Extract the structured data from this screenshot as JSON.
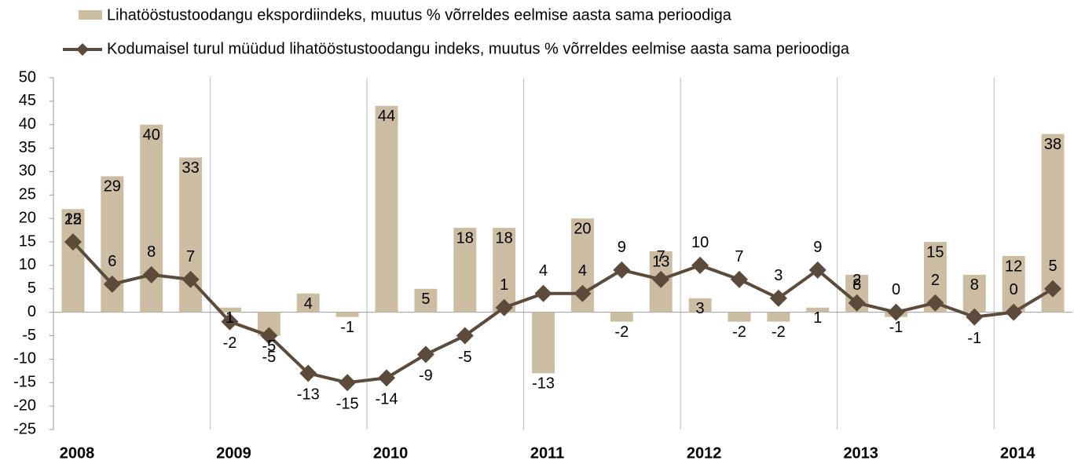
{
  "chart_data": {
    "type": "bar-line",
    "categories": [
      "2008",
      null,
      null,
      null,
      "2009",
      null,
      null,
      null,
      "2010",
      null,
      null,
      null,
      "2011",
      null,
      null,
      null,
      "2012",
      null,
      null,
      null,
      "2013",
      null,
      null,
      null,
      "2014",
      null
    ],
    "series": [
      {
        "name": "Lihatööstustoodangu ekspordiindeks, muutus % võrreldes eelmise aasta sama perioodiga",
        "type": "bar",
        "color": "#cbbca2",
        "values": [
          22,
          29,
          40,
          33,
          1,
          -5,
          4,
          -1,
          44,
          5,
          18,
          18,
          -13,
          20,
          -2,
          13,
          3,
          -2,
          -2,
          1,
          8,
          -1,
          15,
          8,
          12,
          38
        ]
      },
      {
        "name": "Kodumaisel turul müüdud lihatööstustoodangu indeks, muutus % võrreldes eelmise aasta sama perioodiga",
        "type": "line",
        "color": "#5c4a3b",
        "values": [
          15,
          6,
          8,
          7,
          -2,
          -5,
          -13,
          -15,
          -14,
          -9,
          -5,
          1,
          4,
          4,
          9,
          7,
          10,
          7,
          3,
          9,
          2,
          0,
          2,
          -1,
          0,
          5
        ]
      }
    ],
    "ylim": [
      -25,
      50
    ],
    "yticks": [
      -25,
      -20,
      -15,
      -10,
      -5,
      0,
      5,
      10,
      15,
      20,
      25,
      30,
      35,
      40,
      45,
      50
    ],
    "negative_label_color": "#ff0000"
  }
}
